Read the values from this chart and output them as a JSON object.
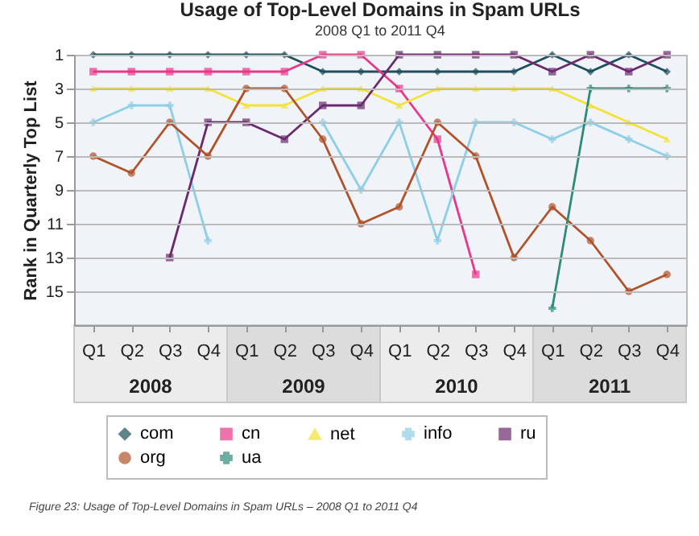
{
  "chart_data": {
    "type": "line",
    "title": "Usage of Top-Level Domains in Spam URLs",
    "subtitle": "2008 Q1 to 2011 Q4",
    "ylabel": "Rank in Quarterly Top List",
    "categories": [
      "Q1",
      "Q2",
      "Q3",
      "Q4",
      "Q1",
      "Q2",
      "Q3",
      "Q4",
      "Q1",
      "Q2",
      "Q3",
      "Q4",
      "Q1",
      "Q2",
      "Q3",
      "Q4"
    ],
    "annotations": [
      "2008",
      "2009",
      "2010",
      "2011",
      "Figure 23: Usage of Top-Level Domains in Spam URLs – 2008 Q1 to 2011 Q4"
    ],
    "ylim": [
      17,
      1
    ],
    "yticks": [
      1,
      3,
      5,
      7,
      9,
      11,
      13,
      15
    ],
    "grid": "y",
    "legend": "bottom",
    "series": [
      {
        "name": "com",
        "color": "#1d4f5e",
        "marker": "diamond",
        "values": [
          1,
          1,
          1,
          1,
          1,
          1,
          2,
          2,
          2,
          2,
          2,
          2,
          1,
          2,
          1,
          2
        ]
      },
      {
        "name": "cn",
        "color": "#e8388a",
        "marker": "square",
        "values": [
          2,
          2,
          2,
          2,
          2,
          2,
          1,
          1,
          3,
          6,
          14,
          null,
          null,
          null,
          null,
          null
        ]
      },
      {
        "name": "net",
        "color": "#f2e23a",
        "marker": "triangle",
        "values": [
          3,
          3,
          3,
          3,
          4,
          4,
          3,
          3,
          4,
          3,
          3,
          3,
          3,
          4,
          5,
          6
        ]
      },
      {
        "name": "info",
        "color": "#8ecfe8",
        "marker": "cross",
        "values": [
          5,
          4,
          4,
          12,
          null,
          null,
          5,
          9,
          5,
          12,
          5,
          5,
          6,
          5,
          6,
          7
        ]
      },
      {
        "name": "ru",
        "color": "#6b2a6f",
        "marker": "square",
        "values": [
          null,
          null,
          13,
          5,
          5,
          6,
          4,
          4,
          1,
          1,
          1,
          1,
          2,
          1,
          2,
          1
        ]
      },
      {
        "name": "org",
        "color": "#b0532a",
        "marker": "circle",
        "values": [
          7,
          8,
          5,
          7,
          3,
          3,
          6,
          11,
          10,
          5,
          7,
          13,
          10,
          12,
          15,
          14
        ]
      },
      {
        "name": "ua",
        "color": "#2e8b7a",
        "marker": "cross",
        "values": [
          null,
          null,
          null,
          null,
          null,
          null,
          null,
          null,
          null,
          null,
          null,
          null,
          16,
          3,
          3,
          3
        ]
      }
    ]
  }
}
